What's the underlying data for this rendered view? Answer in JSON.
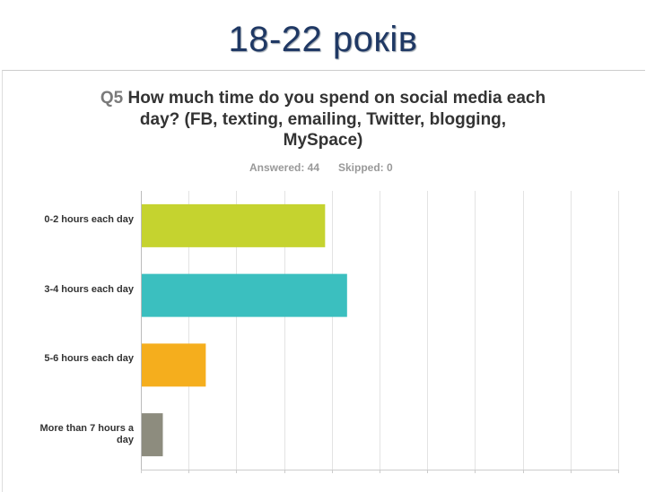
{
  "slide": {
    "title": "18-22 років"
  },
  "survey": {
    "question_number": "Q5",
    "question_text": "How much time do you spend on social media each day? (FB, texting, emailing, Twitter, blogging, MySpace)",
    "answered": "Answered: 44",
    "skipped": "Skipped: 0"
  },
  "chart_data": {
    "type": "bar",
    "orientation": "horizontal",
    "categories": [
      "0-2 hours each day",
      "3-4 hours each day",
      "5-6 hours each day",
      "More than 7 hours a day"
    ],
    "values": [
      38.6,
      43.2,
      13.6,
      4.6
    ],
    "value_unit": "%",
    "xlim": [
      0,
      100
    ],
    "x_gridlines": 10,
    "grid": true,
    "legend": "none",
    "colors": [
      "#c5d32f",
      "#3bbfbf",
      "#f5ae1d",
      "#8d8c7e"
    ]
  }
}
